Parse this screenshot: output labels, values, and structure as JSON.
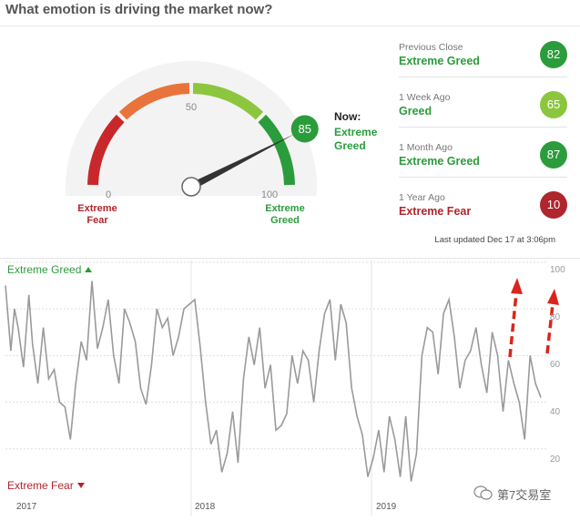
{
  "header": {
    "title": "What emotion is driving the market now?"
  },
  "gauge": {
    "value": 85,
    "value_label": "85",
    "tick_0": "0",
    "tick_50": "50",
    "tick_100": "100",
    "left_label_line1": "Extreme",
    "left_label_line2": "Fear",
    "right_label_line1": "Extreme",
    "right_label_line2": "Greed",
    "now_label": "Now:",
    "now_status": "Extreme Greed"
  },
  "history": [
    {
      "period": "Previous Close",
      "status": "Extreme Greed",
      "value": "82",
      "color": "#2b9c3c",
      "status_color": "#2b9c3c"
    },
    {
      "period": "1 Week Ago",
      "status": "Greed",
      "value": "65",
      "color": "#8cc63f",
      "status_color": "#2b9c3c"
    },
    {
      "period": "1 Month Ago",
      "status": "Extreme Greed",
      "value": "87",
      "color": "#2b9c3c",
      "status_color": "#2b9c3c"
    },
    {
      "period": "1 Year Ago",
      "status": "Extreme Fear",
      "value": "10",
      "color": "#b0262d",
      "status_color": "#b0262d"
    }
  ],
  "last_updated": "Last updated Dec 17 at 3:06pm",
  "colors": {
    "greed": "#2b9c3c",
    "fear": "#b0262d",
    "line": "#999999",
    "arrow": "#d9261c"
  },
  "watermark": "第7交易室",
  "chart_data": {
    "type": "line",
    "top_label": "Extreme Greed",
    "bottom_label": "Extreme Fear",
    "ylim": [
      0,
      100
    ],
    "y_ticks": [
      "100",
      "80",
      "60",
      "40",
      "20"
    ],
    "x_ticks": [
      "2017",
      "2018",
      "2019"
    ],
    "xlim": [
      2016.95,
      2019.95
    ],
    "series": [
      {
        "x": [
          2016.95,
          2016.98,
          2017.0,
          2017.02,
          2017.05,
          2017.08,
          2017.1,
          2017.13,
          2017.16,
          2017.19,
          2017.22,
          2017.25,
          2017.28,
          2017.31,
          2017.34,
          2017.37,
          2017.4,
          2017.43,
          2017.46,
          2017.49,
          2017.52,
          2017.55,
          2017.58,
          2017.61,
          2017.64,
          2017.67,
          2017.7,
          2017.73,
          2017.76,
          2017.79,
          2017.82,
          2017.85,
          2017.88,
          2017.91,
          2017.94,
          2017.97,
          2018.0,
          2018.03,
          2018.06,
          2018.09,
          2018.12,
          2018.15,
          2018.18,
          2018.21,
          2018.24,
          2018.27,
          2018.3,
          2018.33,
          2018.36,
          2018.39,
          2018.42,
          2018.45,
          2018.48,
          2018.51,
          2018.54,
          2018.57,
          2018.6,
          2018.63,
          2018.66,
          2018.69,
          2018.72,
          2018.75,
          2018.78,
          2018.81,
          2018.84,
          2018.87,
          2018.9,
          2018.93,
          2018.96,
          2018.99,
          2019.02,
          2019.05,
          2019.08,
          2019.11,
          2019.14,
          2019.17,
          2019.2,
          2019.23,
          2019.26,
          2019.29,
          2019.32,
          2019.35,
          2019.38,
          2019.41,
          2019.44,
          2019.47,
          2019.5,
          2019.53,
          2019.56,
          2019.59,
          2019.62,
          2019.65,
          2019.68,
          2019.71,
          2019.74,
          2019.77,
          2019.8,
          2019.83,
          2019.86,
          2019.89,
          2019.92
        ],
        "y": [
          90,
          62,
          80,
          72,
          55,
          86,
          65,
          48,
          72,
          50,
          54,
          40,
          38,
          24,
          48,
          66,
          58,
          92,
          63,
          72,
          84,
          60,
          48,
          80,
          74,
          66,
          46,
          39,
          56,
          80,
          72,
          76,
          60,
          68,
          80,
          82,
          84,
          64,
          40,
          22,
          28,
          10,
          18,
          36,
          14,
          50,
          68,
          56,
          72,
          46,
          56,
          28,
          30,
          35,
          60,
          48,
          62,
          58,
          40,
          62,
          78,
          84,
          58,
          82,
          74,
          46,
          34,
          26,
          8,
          16,
          28,
          10,
          34,
          24,
          8,
          34,
          6,
          18,
          60,
          72,
          70,
          52,
          78,
          84,
          68,
          46,
          58,
          62,
          72,
          56,
          44,
          70,
          60,
          36,
          58,
          48,
          40,
          24,
          60,
          48,
          42
        ]
      }
    ]
  }
}
